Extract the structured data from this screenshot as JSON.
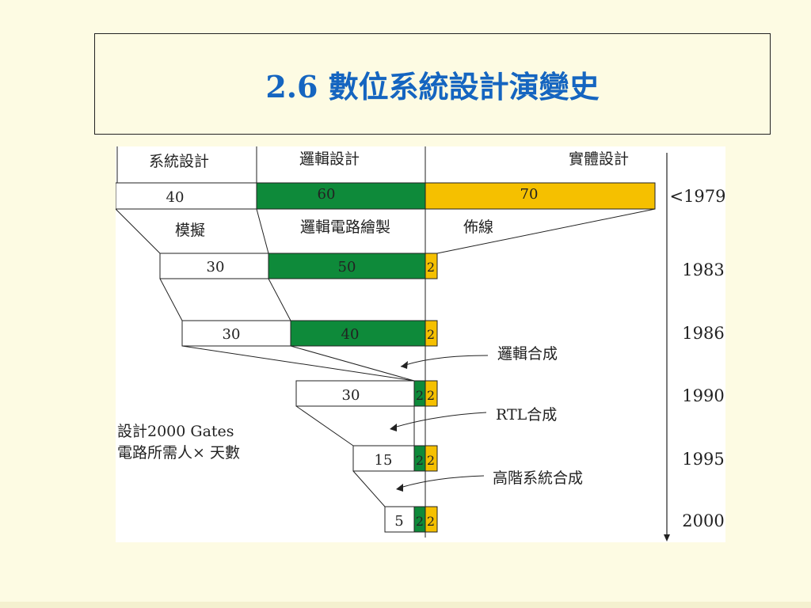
{
  "slide": {
    "title": "2.6 數位系統設計演變史"
  },
  "phases": {
    "system_design": "系統設計",
    "logic_design": "邏輯設計",
    "physical_design": "實體設計",
    "simulation": "模擬",
    "logic_drawing": "邏輯電路繪製",
    "routing": "佈線"
  },
  "rows": [
    {
      "year": "<1979",
      "sys": "40",
      "logic": "60",
      "phys": "70"
    },
    {
      "year": "1983",
      "sys": "30",
      "logic": "50",
      "phys": "2"
    },
    {
      "year": "1986",
      "sys": "30",
      "logic": "40",
      "phys": "2"
    },
    {
      "year": "1990",
      "sys": "30",
      "logic": "2",
      "phys": "2"
    },
    {
      "year": "1995",
      "sys": "15",
      "logic": "2",
      "phys": "2"
    },
    {
      "year": "2000",
      "sys": "5",
      "logic": "2",
      "phys": "2"
    }
  ],
  "annotations": {
    "logic_synthesis": "邏輯合成",
    "rtl_synthesis": "RTL合成",
    "high_level_synthesis": "高階系統合成"
  },
  "caption": {
    "line1": "設計2000 Gates",
    "line2": "電路所需人× 天數"
  },
  "colors": {
    "title": "#1565c0",
    "logic_fill": "#0e8a3a",
    "phys_fill": "#f5c000",
    "background": "#fdfbe3"
  }
}
